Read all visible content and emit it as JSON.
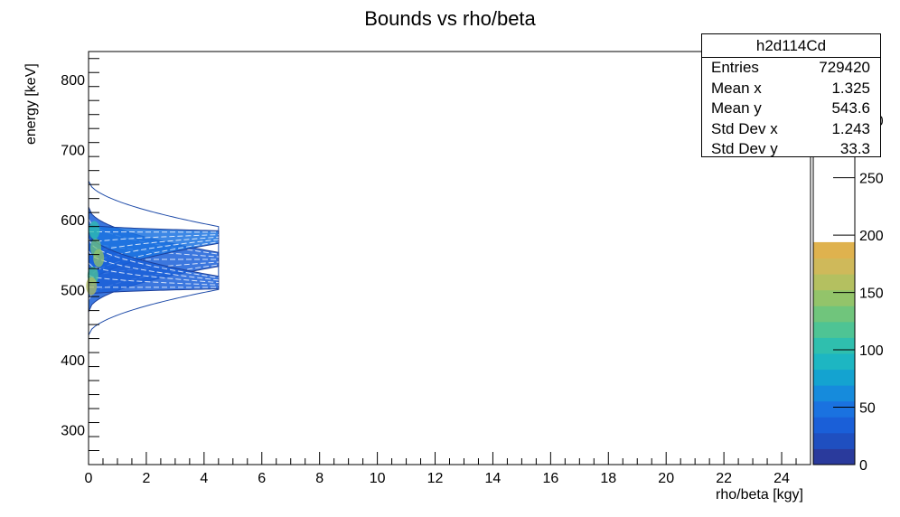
{
  "chart_data": {
    "type": "heatmap",
    "title": "Bounds vs rho/beta",
    "xlabel": "rho/beta [kgy]",
    "ylabel": "energy [keV]",
    "xlim": [
      0,
      25
    ],
    "ylim": [
      250,
      840
    ],
    "x_ticks": [
      0,
      2,
      4,
      6,
      8,
      10,
      12,
      14,
      16,
      18,
      20,
      22,
      24
    ],
    "y_ticks": [
      300,
      400,
      500,
      600,
      700,
      800
    ],
    "x_tick_labels": [
      "0",
      "2",
      "4",
      "6",
      "8",
      "10",
      "12",
      "14",
      "16",
      "18",
      "20",
      "22",
      "24"
    ],
    "y_tick_labels": [
      "300",
      "400",
      "500",
      "600",
      "700",
      "800"
    ],
    "data_extent": {
      "x": [
        0,
        4.5
      ],
      "y": [
        435,
        655
      ]
    },
    "bands": [
      {
        "center_at_x0": 543,
        "center_at_xmax": 543,
        "half_width_at_x0": 75,
        "half_width_at_xmax": 10
      },
      {
        "center_at_x0": 548,
        "center_at_xmax": 575,
        "half_width_at_x0": 45,
        "half_width_at_xmax": 9
      },
      {
        "center_at_x0": 538,
        "center_at_xmax": 510,
        "half_width_at_x0": 45,
        "half_width_at_xmax": 9
      }
    ],
    "colorbar": {
      "zlim": [
        0,
        360
      ],
      "ticks": [
        0,
        50,
        100,
        150,
        200,
        250,
        300
      ],
      "tick_labels": [
        "0",
        "50",
        "100",
        "150",
        "200",
        "250",
        "300"
      ],
      "colors": [
        "#2a3a9c",
        "#1f4fc0",
        "#1a5fd8",
        "#1a72e0",
        "#168bdc",
        "#14a3d0",
        "#1db6c2",
        "#2fbfae",
        "#4ec494",
        "#70c57c",
        "#93c46a",
        "#b4c060",
        "#cfb95a",
        "#dfb24e"
      ]
    },
    "stats": {
      "name": "h2d114Cd",
      "rows": [
        {
          "label": "Entries",
          "value": "729420"
        },
        {
          "label": "Mean x",
          "value": "1.325"
        },
        {
          "label": "Mean y",
          "value": "543.6"
        },
        {
          "label": "Std Dev x",
          "value": "1.243"
        },
        {
          "label": "Std Dev y",
          "value": "33.3"
        }
      ]
    },
    "grid": false,
    "legend": "top-right"
  }
}
